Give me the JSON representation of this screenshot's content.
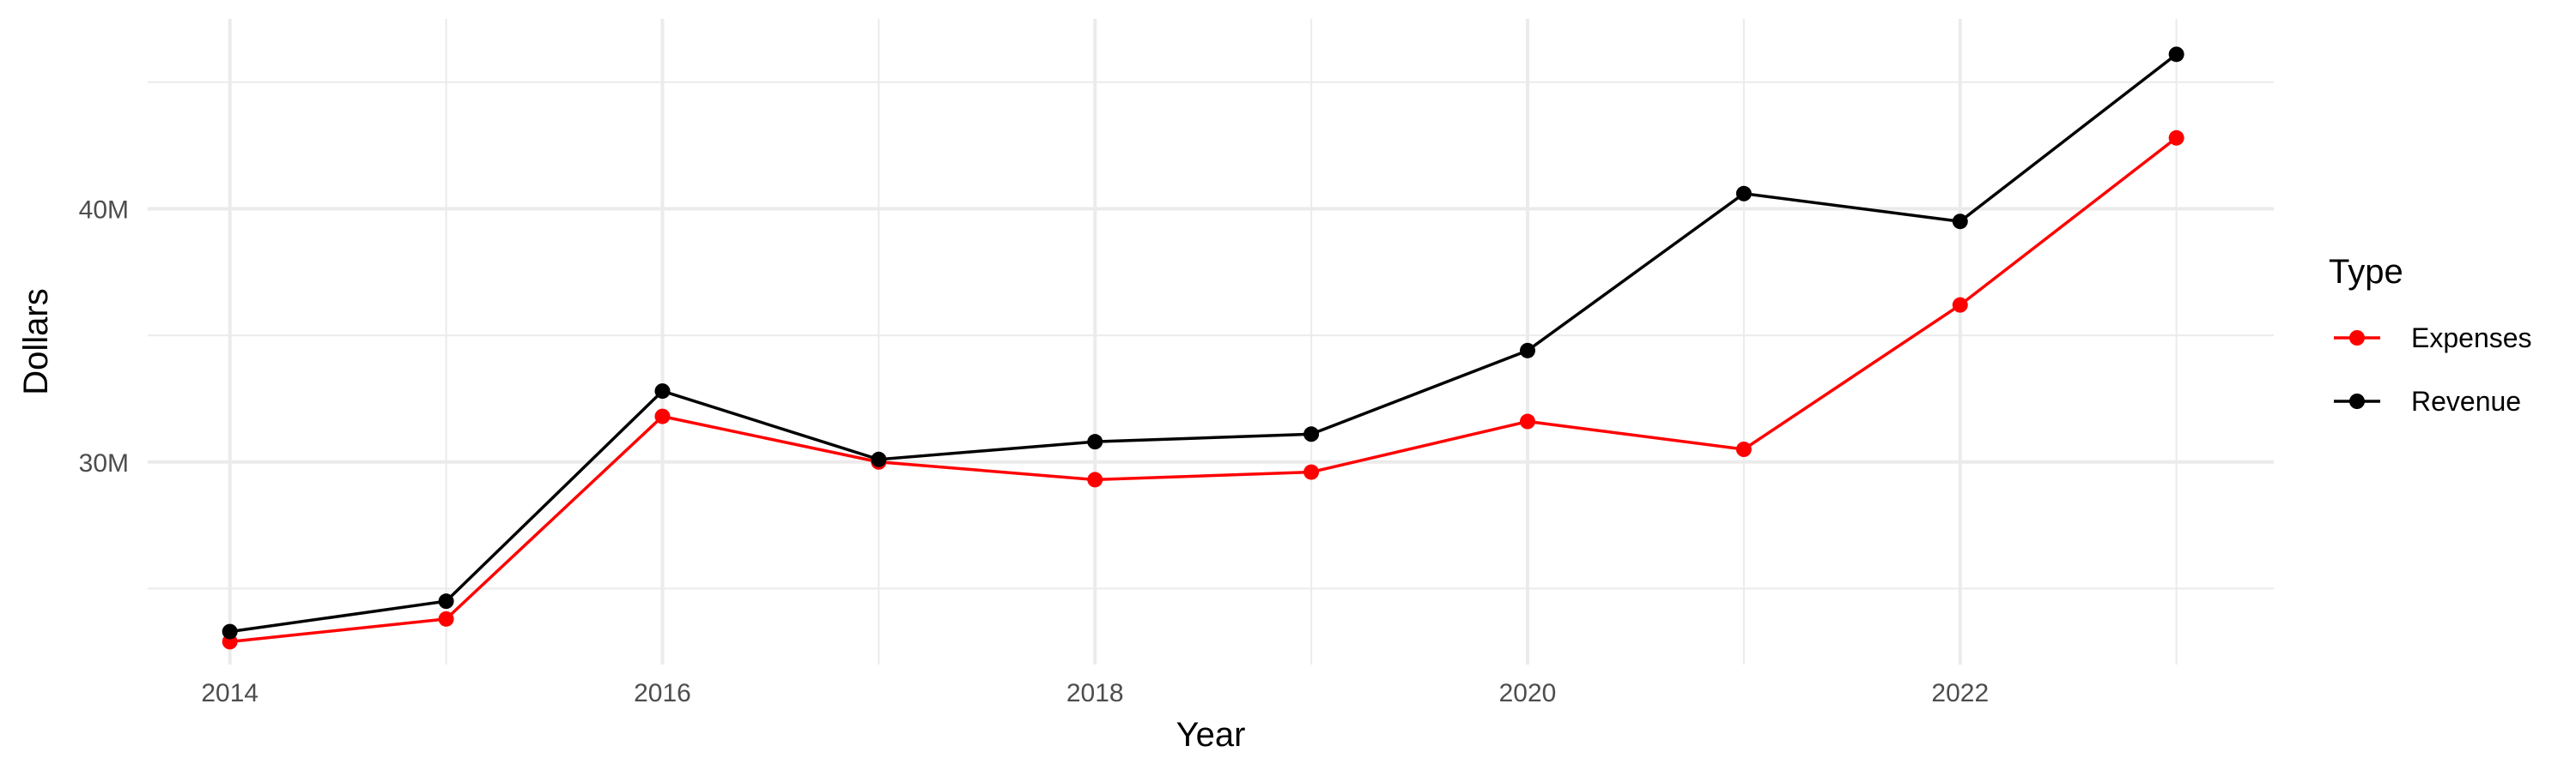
{
  "chart_data": {
    "type": "line",
    "title": "",
    "xlabel": "Year",
    "ylabel": "Dollars",
    "x": [
      2014,
      2015,
      2016,
      2017,
      2018,
      2019,
      2020,
      2021,
      2022,
      2023
    ],
    "x_ticks": [
      2014,
      2016,
      2018,
      2020,
      2022
    ],
    "x_tick_labels": [
      "2014",
      "2016",
      "2018",
      "2020",
      "2022"
    ],
    "y_ticks": [
      30000000,
      40000000
    ],
    "y_tick_labels": [
      "30M",
      "40M"
    ],
    "xlim": [
      2013.62,
      2023.45
    ],
    "ylim": [
      22000000,
      47500000
    ],
    "grid": true,
    "legend": {
      "title": "Type",
      "placement": "right"
    },
    "series": [
      {
        "name": "Expenses",
        "color": "#ff0000",
        "values": [
          22900000,
          23800000,
          31800000,
          30000000,
          29300000,
          29600000,
          31600000,
          30500000,
          36200000,
          42800000
        ]
      },
      {
        "name": "Revenue",
        "color": "#000000",
        "values": [
          23300000,
          24500000,
          32800000,
          30100000,
          30800000,
          31100000,
          34400000,
          40600000,
          39500000,
          46100000
        ]
      }
    ]
  }
}
